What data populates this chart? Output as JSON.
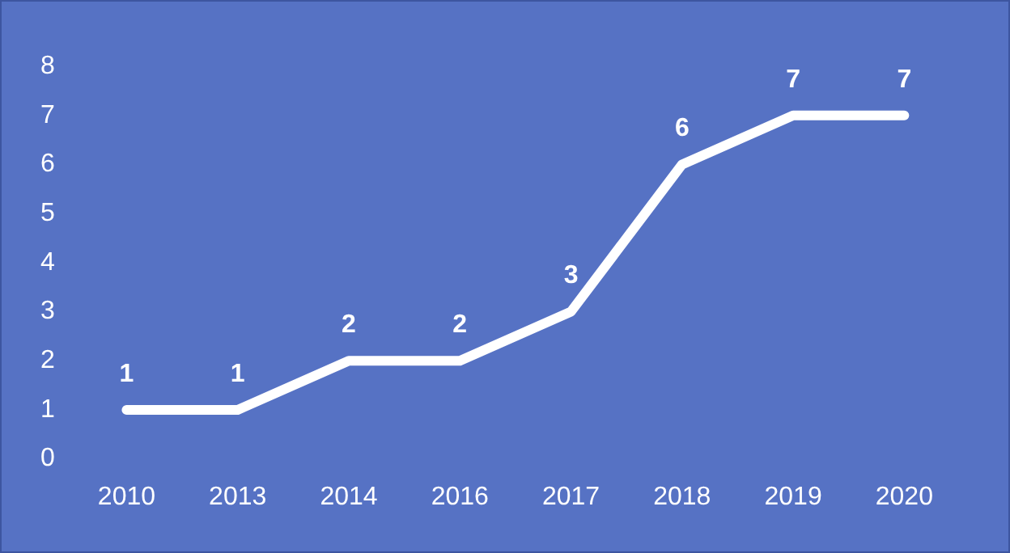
{
  "chart_data": {
    "type": "line",
    "categories": [
      "2010",
      "2013",
      "2014",
      "2016",
      "2017",
      "2018",
      "2019",
      "2020"
    ],
    "series": [
      {
        "color": "#ffffff",
        "values": [
          1,
          1,
          2,
          2,
          3,
          6,
          7,
          7
        ]
      }
    ],
    "ylim": [
      0,
      8
    ],
    "yticks": [
      0,
      1,
      2,
      3,
      4,
      5,
      6,
      7,
      8
    ],
    "grid": false,
    "legend": false,
    "marker": "none",
    "line_style": "solid",
    "data_labels": true
  }
}
